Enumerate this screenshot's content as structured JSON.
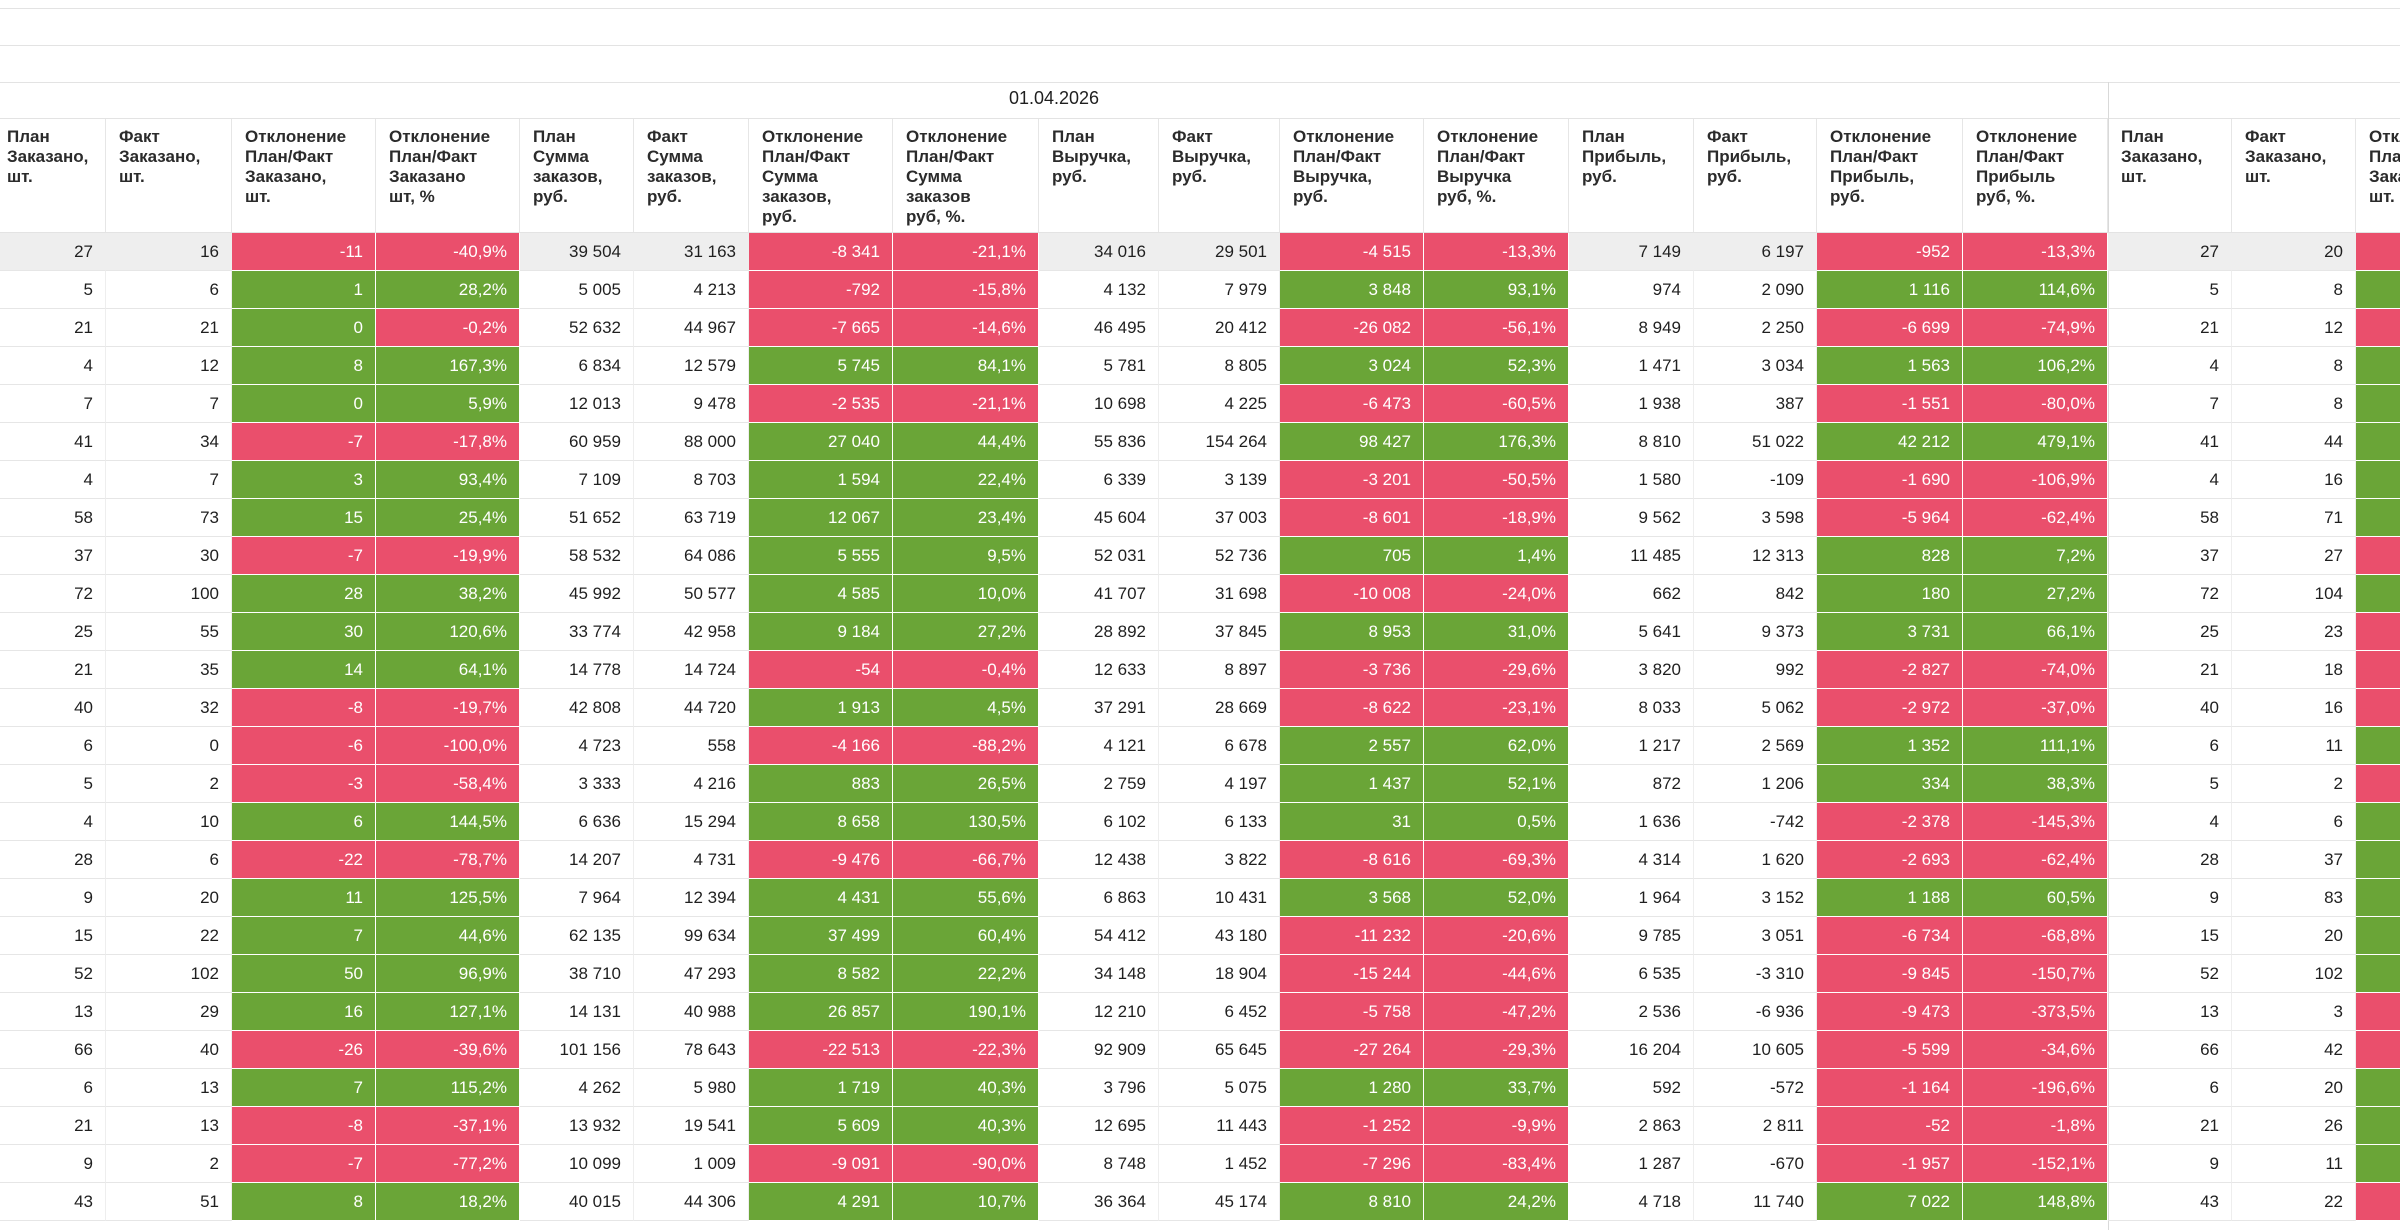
{
  "report": {
    "date": "01.04.2026",
    "columns": [
      {
        "key": "plan_qty",
        "label": "План\nЗаказано,\nшт."
      },
      {
        "key": "fact_qty",
        "label": "Факт\nЗаказано,\nшт."
      },
      {
        "key": "dev_qty",
        "label": "Отклонение\nПлан/Факт\nЗаказано,\nшт.",
        "colored": true
      },
      {
        "key": "dev_qty_pct",
        "label": "Отклонение\nПлан/Факт\nЗаказано\nшт, %",
        "colored": true
      },
      {
        "key": "plan_sum",
        "label": "План\nСумма\nзаказов,\nруб."
      },
      {
        "key": "fact_sum",
        "label": "Факт\nСумма\nзаказов,\nруб."
      },
      {
        "key": "dev_sum",
        "label": "Отклонение\nПлан/Факт\nСумма\nзаказов,\nруб.",
        "colored": true
      },
      {
        "key": "dev_sum_pct",
        "label": "Отклонение\nПлан/Факт\nСумма\nзаказов\nруб, %.",
        "colored": true
      },
      {
        "key": "plan_rev",
        "label": "План\nВыручка,\nруб."
      },
      {
        "key": "fact_rev",
        "label": "Факт\nВыручка,\nруб."
      },
      {
        "key": "dev_rev",
        "label": "Отклонение\nПлан/Факт\nВыручка,\nруб.",
        "colored": true
      },
      {
        "key": "dev_rev_pct",
        "label": "Отклонение\nПлан/Факт\nВыручка\nруб, %.",
        "colored": true
      },
      {
        "key": "plan_profit",
        "label": "План\nПрибыль,\nруб."
      },
      {
        "key": "fact_profit",
        "label": "Факт\nПрибыль,\nруб."
      },
      {
        "key": "dev_profit",
        "label": "Отклонение\nПлан/Факт\nПрибыль,\nруб.",
        "colored": true
      },
      {
        "key": "dev_profit_pct",
        "label": "Отклонение\nПлан/Факт\nПрибыль\nруб, %.",
        "colored": true
      }
    ],
    "next_columns": [
      {
        "key": "plan_qty",
        "label": "План\nЗаказано,\nшт."
      },
      {
        "key": "fact_qty",
        "label": "Факт\nЗаказано,\nшт."
      },
      {
        "key": "dev_qty",
        "label": "Откл\nПла\nЗака\nшт.",
        "colored": true
      }
    ],
    "rows": [
      [
        "27",
        "16",
        "-11",
        "-40,9%",
        "39 504",
        "31 163",
        "-8 341",
        "-21,1%",
        "34 016",
        "29 501",
        "-4 515",
        "-13,3%",
        "7 149",
        "6 197",
        "-952",
        "-13,3%"
      ],
      [
        "5",
        "6",
        "1",
        "28,2%",
        "5 005",
        "4 213",
        "-792",
        "-15,8%",
        "4 132",
        "7 979",
        "3 848",
        "93,1%",
        "974",
        "2 090",
        "1 116",
        "114,6%"
      ],
      [
        "21",
        "21",
        "0",
        "-0,2%",
        "52 632",
        "44 967",
        "-7 665",
        "-14,6%",
        "46 495",
        "20 412",
        "-26 082",
        "-56,1%",
        "8 949",
        "2 250",
        "-6 699",
        "-74,9%"
      ],
      [
        "4",
        "12",
        "8",
        "167,3%",
        "6 834",
        "12 579",
        "5 745",
        "84,1%",
        "5 781",
        "8 805",
        "3 024",
        "52,3%",
        "1 471",
        "3 034",
        "1 563",
        "106,2%"
      ],
      [
        "7",
        "7",
        "0",
        "5,9%",
        "12 013",
        "9 478",
        "-2 535",
        "-21,1%",
        "10 698",
        "4 225",
        "-6 473",
        "-60,5%",
        "1 938",
        "387",
        "-1 551",
        "-80,0%"
      ],
      [
        "41",
        "34",
        "-7",
        "-17,8%",
        "60 959",
        "88 000",
        "27 040",
        "44,4%",
        "55 836",
        "154 264",
        "98 427",
        "176,3%",
        "8 810",
        "51 022",
        "42 212",
        "479,1%"
      ],
      [
        "4",
        "7",
        "3",
        "93,4%",
        "7 109",
        "8 703",
        "1 594",
        "22,4%",
        "6 339",
        "3 139",
        "-3 201",
        "-50,5%",
        "1 580",
        "-109",
        "-1 690",
        "-106,9%"
      ],
      [
        "58",
        "73",
        "15",
        "25,4%",
        "51 652",
        "63 719",
        "12 067",
        "23,4%",
        "45 604",
        "37 003",
        "-8 601",
        "-18,9%",
        "9 562",
        "3 598",
        "-5 964",
        "-62,4%"
      ],
      [
        "37",
        "30",
        "-7",
        "-19,9%",
        "58 532",
        "64 086",
        "5 555",
        "9,5%",
        "52 031",
        "52 736",
        "705",
        "1,4%",
        "11 485",
        "12 313",
        "828",
        "7,2%"
      ],
      [
        "72",
        "100",
        "28",
        "38,2%",
        "45 992",
        "50 577",
        "4 585",
        "10,0%",
        "41 707",
        "31 698",
        "-10 008",
        "-24,0%",
        "662",
        "842",
        "180",
        "27,2%"
      ],
      [
        "25",
        "55",
        "30",
        "120,6%",
        "33 774",
        "42 958",
        "9 184",
        "27,2%",
        "28 892",
        "37 845",
        "8 953",
        "31,0%",
        "5 641",
        "9 373",
        "3 731",
        "66,1%"
      ],
      [
        "21",
        "35",
        "14",
        "64,1%",
        "14 778",
        "14 724",
        "-54",
        "-0,4%",
        "12 633",
        "8 897",
        "-3 736",
        "-29,6%",
        "3 820",
        "992",
        "-2 827",
        "-74,0%"
      ],
      [
        "40",
        "32",
        "-8",
        "-19,7%",
        "42 808",
        "44 720",
        "1 913",
        "4,5%",
        "37 291",
        "28 669",
        "-8 622",
        "-23,1%",
        "8 033",
        "5 062",
        "-2 972",
        "-37,0%"
      ],
      [
        "6",
        "0",
        "-6",
        "-100,0%",
        "4 723",
        "558",
        "-4 166",
        "-88,2%",
        "4 121",
        "6 678",
        "2 557",
        "62,0%",
        "1 217",
        "2 569",
        "1 352",
        "111,1%"
      ],
      [
        "5",
        "2",
        "-3",
        "-58,4%",
        "3 333",
        "4 216",
        "883",
        "26,5%",
        "2 759",
        "4 197",
        "1 437",
        "52,1%",
        "872",
        "1 206",
        "334",
        "38,3%"
      ],
      [
        "4",
        "10",
        "6",
        "144,5%",
        "6 636",
        "15 294",
        "8 658",
        "130,5%",
        "6 102",
        "6 133",
        "31",
        "0,5%",
        "1 636",
        "-742",
        "-2 378",
        "-145,3%"
      ],
      [
        "28",
        "6",
        "-22",
        "-78,7%",
        "14 207",
        "4 731",
        "-9 476",
        "-66,7%",
        "12 438",
        "3 822",
        "-8 616",
        "-69,3%",
        "4 314",
        "1 620",
        "-2 693",
        "-62,4%"
      ],
      [
        "9",
        "20",
        "11",
        "125,5%",
        "7 964",
        "12 394",
        "4 431",
        "55,6%",
        "6 863",
        "10 431",
        "3 568",
        "52,0%",
        "1 964",
        "3 152",
        "1 188",
        "60,5%"
      ],
      [
        "15",
        "22",
        "7",
        "44,6%",
        "62 135",
        "99 634",
        "37 499",
        "60,4%",
        "54 412",
        "43 180",
        "-11 232",
        "-20,6%",
        "9 785",
        "3 051",
        "-6 734",
        "-68,8%"
      ],
      [
        "52",
        "102",
        "50",
        "96,9%",
        "38 710",
        "47 293",
        "8 582",
        "22,2%",
        "34 148",
        "18 904",
        "-15 244",
        "-44,6%",
        "6 535",
        "-3 310",
        "-9 845",
        "-150,7%"
      ],
      [
        "13",
        "29",
        "16",
        "127,1%",
        "14 131",
        "40 988",
        "26 857",
        "190,1%",
        "12 210",
        "6 452",
        "-5 758",
        "-47,2%",
        "2 536",
        "-6 936",
        "-9 473",
        "-373,5%"
      ],
      [
        "66",
        "40",
        "-26",
        "-39,6%",
        "101 156",
        "78 643",
        "-22 513",
        "-22,3%",
        "92 909",
        "65 645",
        "-27 264",
        "-29,3%",
        "16 204",
        "10 605",
        "-5 599",
        "-34,6%"
      ],
      [
        "6",
        "13",
        "7",
        "115,2%",
        "4 262",
        "5 980",
        "1 719",
        "40,3%",
        "3 796",
        "5 075",
        "1 280",
        "33,7%",
        "592",
        "-572",
        "-1 164",
        "-196,6%"
      ],
      [
        "21",
        "13",
        "-8",
        "-37,1%",
        "13 932",
        "19 541",
        "5 609",
        "40,3%",
        "12 695",
        "11 443",
        "-1 252",
        "-9,9%",
        "2 863",
        "2 811",
        "-52",
        "-1,8%"
      ],
      [
        "9",
        "2",
        "-7",
        "-77,2%",
        "10 099",
        "1 009",
        "-9 091",
        "-90,0%",
        "8 748",
        "1 452",
        "-7 296",
        "-83,4%",
        "1 287",
        "-670",
        "-1 957",
        "-152,1%"
      ],
      [
        "43",
        "51",
        "8",
        "18,2%",
        "40 015",
        "44 306",
        "4 291",
        "10,7%",
        "36 364",
        "45 174",
        "8 810",
        "24,2%",
        "4 718",
        "11 740",
        "7 022",
        "148,8%"
      ]
    ],
    "next_rows": [
      [
        "27",
        "20",
        "neg"
      ],
      [
        "5",
        "8",
        "pos"
      ],
      [
        "21",
        "12",
        "neg"
      ],
      [
        "4",
        "8",
        "pos"
      ],
      [
        "7",
        "8",
        "pos"
      ],
      [
        "41",
        "44",
        "pos"
      ],
      [
        "4",
        "16",
        "pos"
      ],
      [
        "58",
        "71",
        "pos"
      ],
      [
        "37",
        "27",
        "neg"
      ],
      [
        "72",
        "104",
        "pos"
      ],
      [
        "25",
        "23",
        "neg"
      ],
      [
        "21",
        "18",
        "neg"
      ],
      [
        "40",
        "16",
        "neg"
      ],
      [
        "6",
        "11",
        "pos"
      ],
      [
        "5",
        "2",
        "neg"
      ],
      [
        "4",
        "6",
        "pos"
      ],
      [
        "28",
        "37",
        "pos"
      ],
      [
        "9",
        "83",
        "pos"
      ],
      [
        "15",
        "20",
        "pos"
      ],
      [
        "52",
        "102",
        "pos"
      ],
      [
        "13",
        "3",
        "neg"
      ],
      [
        "66",
        "42",
        "neg"
      ],
      [
        "6",
        "20",
        "pos"
      ],
      [
        "21",
        "26",
        "pos"
      ],
      [
        "9",
        "11",
        "pos"
      ],
      [
        "43",
        "22",
        "neg"
      ]
    ],
    "colors": {
      "positive": "#6aa537",
      "negative": "#ea4f6c",
      "highlight_row": "#eeeeee"
    }
  }
}
